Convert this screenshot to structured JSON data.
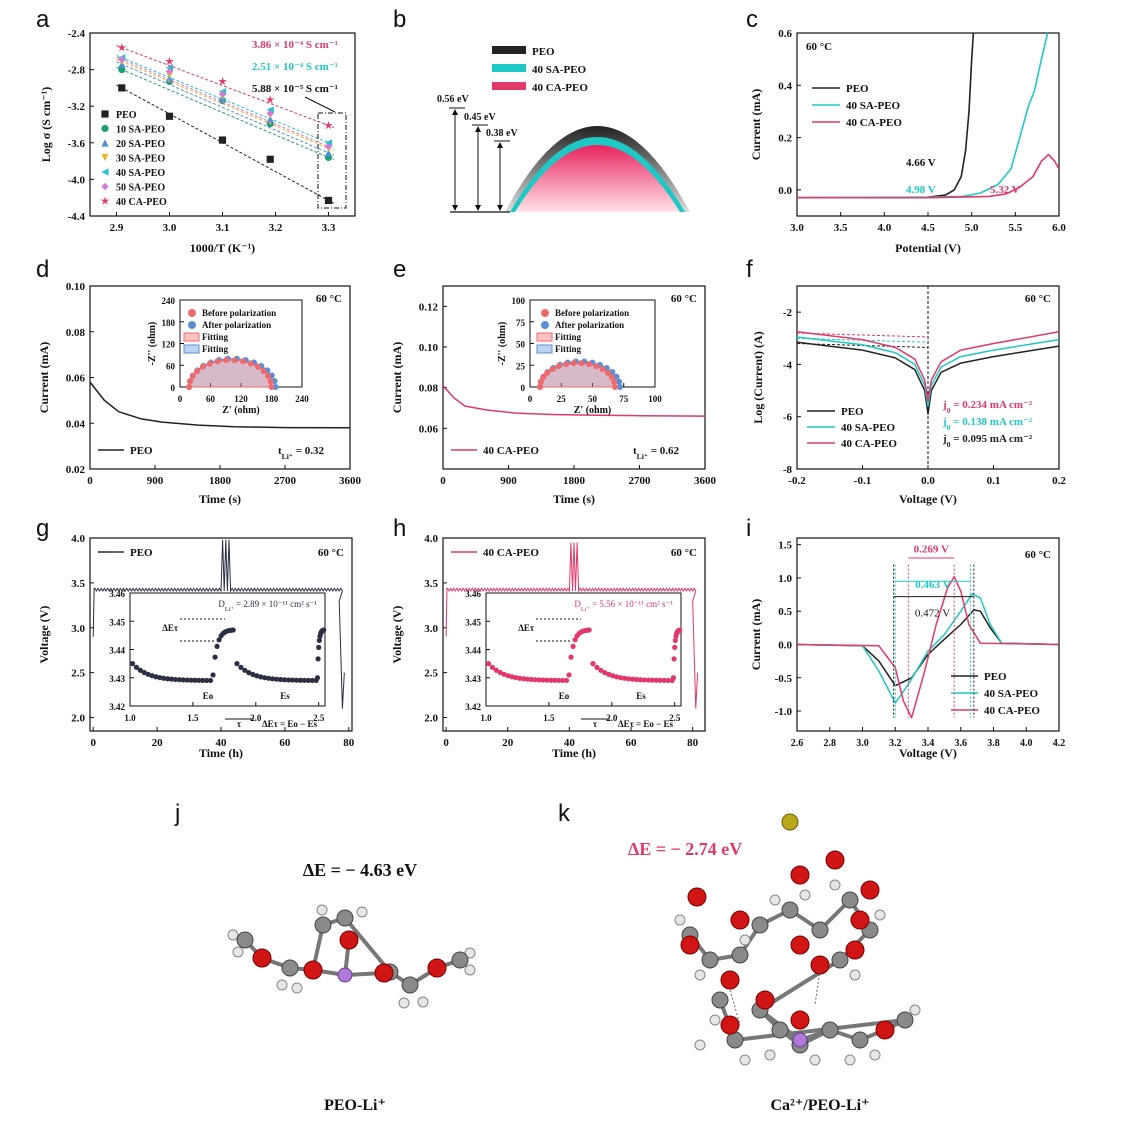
{
  "panel_letters": [
    "a",
    "b",
    "c",
    "d",
    "e",
    "f",
    "g",
    "h",
    "i",
    "j",
    "k"
  ],
  "colors": {
    "peo": "#222222",
    "sa": "#1ec9c5",
    "ca": "#e2386a",
    "s10": "#1a9e77",
    "s20": "#4a90d9",
    "s30": "#f0b429",
    "s40": "#22c4d4",
    "s50": "#d77ad6",
    "nyquist_before": "#f06a6a",
    "nyquist_after": "#5b8fd6",
    "inset_peo": "#2b2f44"
  },
  "chart_data": [
    {
      "id": "a",
      "type": "scatter",
      "xlabel": "1000/T (K⁻¹)",
      "ylabel": "Log σ (S cm⁻¹)",
      "xlim": [
        2.85,
        3.35
      ],
      "ylim": [
        -4.4,
        -2.4
      ],
      "xticks": [
        "2.9",
        "3.0",
        "3.1",
        "3.2",
        "3.3"
      ],
      "yticks": [
        "-2.4",
        "-2.8",
        "-3.2",
        "-3.6",
        "-4.0",
        "-4.4"
      ],
      "x": [
        2.91,
        3.0,
        3.1,
        3.19,
        3.3
      ],
      "series": [
        {
          "name": "PEO",
          "marker": "square",
          "values": [
            -3.0,
            -3.31,
            -3.57,
            -3.78,
            -4.23
          ]
        },
        {
          "name": "10 SA-PEO",
          "marker": "circle",
          "values": [
            -2.8,
            -2.93,
            -3.14,
            -3.39,
            -3.76
          ]
        },
        {
          "name": "20 SA-PEO",
          "marker": "triangle",
          "values": [
            -2.74,
            -2.9,
            -3.12,
            -3.34,
            -3.71
          ]
        },
        {
          "name": "30 SA-PEO",
          "marker": "triangle-down",
          "values": [
            -2.71,
            -2.86,
            -3.09,
            -3.3,
            -3.66
          ]
        },
        {
          "name": "40 SA-PEO",
          "marker": "triangle-left",
          "values": [
            -2.67,
            -2.78,
            -3.04,
            -3.24,
            -3.6
          ]
        },
        {
          "name": "50 SA-PEO",
          "marker": "diamond",
          "values": [
            -2.69,
            -2.82,
            -3.07,
            -3.28,
            -3.64
          ]
        },
        {
          "name": "40 CA-PEO",
          "marker": "star",
          "values": [
            -2.56,
            -2.71,
            -2.93,
            -3.13,
            -3.41
          ]
        }
      ],
      "annotations": [
        "3.86 × 10⁻⁴ S cm⁻¹",
        "2.51 × 10⁻⁴ S cm⁻¹",
        "5.88 × 10⁻⁵ S cm⁻¹"
      ]
    },
    {
      "id": "b",
      "type": "diagram",
      "legend": [
        "PEO",
        "40 SA-PEO",
        "40 CA-PEO"
      ],
      "energies_eV": [
        0.56,
        0.45,
        0.38
      ],
      "energy_labels": [
        "0.56 eV",
        "0.45 eV",
        "0.38 eV"
      ]
    },
    {
      "id": "c",
      "type": "line",
      "xlabel": "Potential (V)",
      "ylabel": "Current (mA)",
      "xlim": [
        3.0,
        6.0
      ],
      "ylim": [
        -0.1,
        0.6
      ],
      "xticks": [
        "3.0",
        "3.5",
        "4.0",
        "4.5",
        "5.0",
        "5.5",
        "6.0"
      ],
      "yticks": [
        "0.6",
        "0.4",
        "0.2",
        "0.0"
      ],
      "temp": "60 °C",
      "series": [
        {
          "name": "PEO",
          "x": [
            3.0,
            4.0,
            4.5,
            4.7,
            4.8,
            4.88,
            4.93,
            4.97,
            5.0,
            5.02
          ],
          "values": [
            -0.03,
            -0.03,
            -0.028,
            -0.02,
            0.0,
            0.05,
            0.15,
            0.3,
            0.5,
            0.6
          ]
        },
        {
          "name": "40 SA-PEO",
          "x": [
            3.0,
            4.5,
            4.9,
            5.1,
            5.3,
            5.45,
            5.55,
            5.65,
            5.72,
            5.8,
            5.87
          ],
          "values": [
            -0.03,
            -0.028,
            -0.025,
            -0.012,
            0.02,
            0.08,
            0.2,
            0.32,
            0.38,
            0.5,
            0.6
          ]
        },
        {
          "name": "40 CA-PEO",
          "x": [
            3.0,
            4.5,
            5.2,
            5.4,
            5.55,
            5.7,
            5.8,
            5.88,
            5.95,
            6.0
          ],
          "values": [
            -0.03,
            -0.03,
            -0.025,
            -0.015,
            0.01,
            0.05,
            0.11,
            0.135,
            0.11,
            0.08
          ]
        }
      ],
      "annotations": [
        "4.66 V",
        "4.98 V",
        "5.32 V"
      ]
    },
    {
      "id": "d",
      "type": "line",
      "xlabel": "Time (s)",
      "ylabel": "Current (mA)",
      "xlim": [
        0,
        3600
      ],
      "ylim": [
        0.02,
        0.1
      ],
      "xticks": [
        "0",
        "900",
        "1800",
        "2700",
        "3600"
      ],
      "yticks": [
        "0.10",
        "0.08",
        "0.06",
        "0.04",
        "0.02"
      ],
      "temp": "60 °C",
      "legend": "PEO",
      "tli_label": "t",
      "tli_sub": "Li⁺",
      "tli_value": "= 0.32",
      "series": [
        {
          "name": "PEO",
          "x": [
            0,
            200,
            400,
            700,
            1000,
            1500,
            2000,
            2700,
            3600
          ],
          "values": [
            0.058,
            0.05,
            0.045,
            0.042,
            0.0405,
            0.0392,
            0.0385,
            0.0381,
            0.038
          ]
        }
      ],
      "inset": {
        "xlabel": "Z' (ohm)",
        "ylabel": "-Z'' (ohm)",
        "xlim": [
          0,
          240
        ],
        "ylim": [
          0,
          240
        ],
        "xticks": [
          "0",
          "60",
          "120",
          "180",
          "240"
        ],
        "yticks": [
          "240",
          "180",
          "120",
          "60",
          "0"
        ],
        "legend": [
          "Before polarization",
          "After polarization",
          "Fitting",
          "Fitting"
        ],
        "before": {
          "start": 18,
          "end": 180
        },
        "after": {
          "start": 18,
          "end": 188
        }
      }
    },
    {
      "id": "e",
      "type": "line",
      "xlabel": "Time (s)",
      "ylabel": "Current (mA)",
      "xlim": [
        0,
        3600
      ],
      "ylim": [
        0.04,
        0.13
      ],
      "xticks": [
        "0",
        "900",
        "1800",
        "2700",
        "3600"
      ],
      "yticks": [
        "0.12",
        "0.10",
        "0.08",
        "0.06"
      ],
      "temp": "60 °C",
      "legend": "40 CA-PEO",
      "tli_label": "t",
      "tli_sub": "Li⁺",
      "tli_value": "= 0.62",
      "series": [
        {
          "name": "40 CA-PEO",
          "x": [
            0,
            150,
            300,
            600,
            1000,
            1500,
            2000,
            2700,
            3600
          ],
          "values": [
            0.081,
            0.075,
            0.071,
            0.069,
            0.0675,
            0.0668,
            0.0665,
            0.0662,
            0.066
          ]
        }
      ],
      "inset": {
        "xlabel": "Z' (ohm)",
        "ylabel": "-Z'' (ohm)",
        "xlim": [
          0,
          100
        ],
        "ylim": [
          0,
          100
        ],
        "xticks": [
          "0",
          "25",
          "50",
          "75",
          "100"
        ],
        "yticks": [
          "100",
          "75",
          "50",
          "25",
          "0"
        ],
        "legend": [
          "Before polarization",
          "After polarization",
          "Fitting",
          "Fitting"
        ],
        "before": {
          "start": 8,
          "end": 68
        },
        "after": {
          "start": 8,
          "end": 72
        }
      }
    },
    {
      "id": "f",
      "type": "line",
      "xlabel": "Voltage (V)",
      "ylabel": "Log (Current) (A)",
      "xlim": [
        -0.2,
        0.2
      ],
      "ylim": [
        -8,
        -1
      ],
      "xticks": [
        "-0.2",
        "-0.1",
        "0.0",
        "0.1",
        "0.2"
      ],
      "yticks": [
        "-2",
        "-4",
        "-6",
        "-8"
      ],
      "temp": "60 °C",
      "series": [
        {
          "name": "PEO",
          "x": [
            -0.2,
            -0.1,
            -0.05,
            -0.02,
            -0.005,
            0,
            0.005,
            0.02,
            0.05,
            0.1,
            0.2
          ],
          "values": [
            -3.15,
            -3.45,
            -3.75,
            -4.2,
            -5.0,
            -5.9,
            -5.0,
            -4.3,
            -3.95,
            -3.7,
            -3.3
          ]
        },
        {
          "name": "40 SA-PEO",
          "x": [
            -0.2,
            -0.1,
            -0.05,
            -0.02,
            -0.005,
            0,
            0.005,
            0.02,
            0.05,
            0.1,
            0.2
          ],
          "values": [
            -2.95,
            -3.25,
            -3.55,
            -4.0,
            -4.8,
            -5.6,
            -4.8,
            -4.1,
            -3.7,
            -3.45,
            -3.05
          ]
        },
        {
          "name": "40 CA-PEO",
          "x": [
            -0.2,
            -0.1,
            -0.05,
            -0.02,
            -0.005,
            0,
            0.005,
            0.02,
            0.05,
            0.1,
            0.2
          ],
          "values": [
            -2.75,
            -3.05,
            -3.35,
            -3.8,
            -4.6,
            -5.4,
            -4.6,
            -3.9,
            -3.45,
            -3.2,
            -2.75
          ]
        }
      ],
      "j0": [
        {
          "label": "j",
          "sub": "0",
          "value": " = 0.234 mA cm⁻²",
          "series": "40 CA-PEO"
        },
        {
          "label": "j",
          "sub": "0",
          "value": " = 0.138 mA cm⁻²",
          "series": "40 SA-PEO"
        },
        {
          "label": "j",
          "sub": "0",
          "value": " = 0.095 mA cm⁻²",
          "series": "PEO"
        }
      ]
    },
    {
      "id": "g",
      "type": "line",
      "xlabel": "Time (h)",
      "ylabel": "Voltage (V)",
      "xlim": [
        -1,
        81
      ],
      "ylim": [
        1.85,
        4.0
      ],
      "xticks": [
        "0",
        "20",
        "40",
        "60",
        "80"
      ],
      "yticks": [
        "4.0",
        "3.5",
        "3.0",
        "2.5",
        "2.0"
      ],
      "temp": "60 °C",
      "legend": "PEO",
      "plateau": 3.44,
      "spike": {
        "x": 41.5,
        "y": 3.98
      },
      "end": 78,
      "inset": {
        "xlim": [
          1.0,
          2.55
        ],
        "ylim": [
          3.42,
          3.46
        ],
        "xticks": [
          "1.0",
          "1.5",
          "2.0",
          "2.5"
        ],
        "yticks": [
          "3.46",
          "3.45",
          "3.44",
          "3.43",
          "3.42"
        ],
        "diff_label": "D",
        "diff_sub": "Li⁺",
        "diff_value": " = 2.89 × 10⁻¹¹ cm² s⁻¹",
        "labels": [
          "ΔEτ",
          "Eo",
          "Es",
          "τ",
          "ΔEτ = Eo − Es"
        ]
      }
    },
    {
      "id": "h",
      "type": "line",
      "xlabel": "Time (h)",
      "ylabel": "Voltage (V)",
      "xlim": [
        -1,
        84
      ],
      "ylim": [
        1.85,
        4.0
      ],
      "xticks": [
        "0",
        "20",
        "40",
        "60",
        "80"
      ],
      "yticks": [
        "4.0",
        "3.5",
        "3.0",
        "2.5",
        "2.0"
      ],
      "temp": "60 °C",
      "legend": "40 CA-PEO",
      "plateau": 3.44,
      "spike": {
        "x": 41.5,
        "y": 3.95
      },
      "end": 81,
      "inset": {
        "xlim": [
          1.0,
          2.55
        ],
        "ylim": [
          3.42,
          3.46
        ],
        "xticks": [
          "1.0",
          "1.5",
          "2.0",
          "2.5"
        ],
        "yticks": [
          "3.46",
          "3.45",
          "3.44",
          "3.43",
          "3.42"
        ],
        "diff_label": "D",
        "diff_sub": "Li⁺",
        "diff_value": " = 5.56 × 10⁻¹¹ cm² s⁻¹",
        "labels": [
          "ΔEτ",
          "Eo",
          "Es",
          "τ",
          "ΔEτ = Eo − Es"
        ]
      }
    },
    {
      "id": "i",
      "type": "line",
      "xlabel": "Voltage (V)",
      "ylabel": "Current (mA)",
      "xlim": [
        2.6,
        4.2
      ],
      "ylim": [
        -1.3,
        1.6
      ],
      "xticks": [
        "2.6",
        "2.8",
        "3.0",
        "3.2",
        "3.4",
        "3.6",
        "3.8",
        "4.0",
        "4.2"
      ],
      "yticks": [
        "1.5",
        "1.0",
        "0.5",
        "0.0",
        "-0.5",
        "-1.0"
      ],
      "temp": "60 °C",
      "series": [
        {
          "name": "PEO",
          "x": [
            2.6,
            3.0,
            3.1,
            3.2,
            3.3,
            3.4,
            3.5,
            3.6,
            3.68,
            3.72,
            3.78,
            3.85,
            4.2
          ],
          "values": [
            0,
            -0.02,
            -0.25,
            -0.62,
            -0.5,
            -0.15,
            0.08,
            0.3,
            0.52,
            0.5,
            0.25,
            0.02,
            0
          ]
        },
        {
          "name": "40 SA-PEO",
          "x": [
            2.6,
            3.0,
            3.1,
            3.2,
            3.28,
            3.4,
            3.5,
            3.6,
            3.67,
            3.72,
            3.78,
            3.85,
            4.2
          ],
          "values": [
            0,
            -0.02,
            -0.4,
            -0.88,
            -0.6,
            -0.1,
            0.15,
            0.5,
            0.76,
            0.7,
            0.3,
            0.02,
            0
          ]
        },
        {
          "name": "40 CA-PEO",
          "x": [
            2.6,
            3.1,
            3.2,
            3.25,
            3.3,
            3.38,
            3.45,
            3.52,
            3.56,
            3.6,
            3.65,
            3.72,
            4.2
          ],
          "values": [
            0,
            -0.02,
            -0.35,
            -0.85,
            -1.1,
            -0.4,
            0.3,
            0.85,
            1.02,
            0.8,
            0.3,
            0.02,
            0
          ]
        }
      ],
      "annotations": [
        "0.269 V",
        "0.463 V",
        "0.472 V"
      ]
    }
  ],
  "molecules": {
    "j": {
      "energy": "ΔE = − 4.63 eV",
      "caption": "PEO-Li⁺"
    },
    "k": {
      "energy": "ΔE = − 2.74 eV",
      "caption": "Ca²⁺/PEO-Li⁺"
    }
  }
}
